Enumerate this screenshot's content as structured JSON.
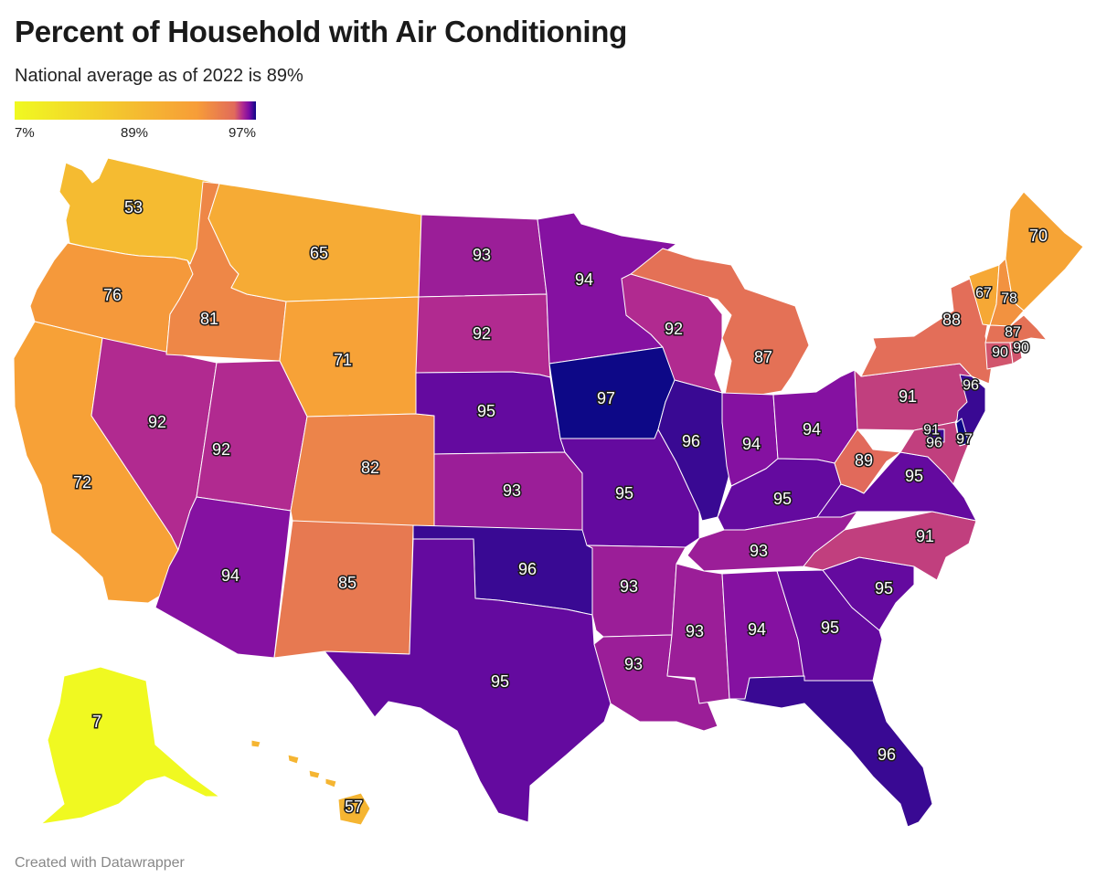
{
  "title": "Percent of Household with Air Conditioning",
  "subtitle": "National average as of 2022 is 89%",
  "legend": {
    "min_label": "7%",
    "mid_label": "89%",
    "max_label": "97%",
    "min": 7,
    "mid": 89,
    "max": 97,
    "colors": [
      "#f0f921",
      "#f79d38",
      "#e16a5b",
      "#b12a90",
      "#7a0ba5",
      "#0d0887"
    ]
  },
  "credit": "Created with Datawrapper",
  "chart_data": {
    "type": "choropleth",
    "unit": "%",
    "states": [
      {
        "code": "WA",
        "value": 53,
        "label": "53"
      },
      {
        "code": "OR",
        "value": 76,
        "label": "76"
      },
      {
        "code": "CA",
        "value": 72,
        "label": "72"
      },
      {
        "code": "NV",
        "value": 92,
        "label": "92"
      },
      {
        "code": "ID",
        "value": 81,
        "label": "81"
      },
      {
        "code": "MT",
        "value": 65,
        "label": "65"
      },
      {
        "code": "WY",
        "value": 71,
        "label": "71"
      },
      {
        "code": "UT",
        "value": 92,
        "label": "92"
      },
      {
        "code": "AZ",
        "value": 94,
        "label": "94"
      },
      {
        "code": "CO",
        "value": 82,
        "label": "82"
      },
      {
        "code": "NM",
        "value": 85,
        "label": "85"
      },
      {
        "code": "ND",
        "value": 93,
        "label": "93"
      },
      {
        "code": "SD",
        "value": 92,
        "label": "92"
      },
      {
        "code": "NE",
        "value": 95,
        "label": "95"
      },
      {
        "code": "KS",
        "value": 93,
        "label": "93"
      },
      {
        "code": "OK",
        "value": 96,
        "label": "96"
      },
      {
        "code": "TX",
        "value": 95,
        "label": "95"
      },
      {
        "code": "MN",
        "value": 94,
        "label": "94"
      },
      {
        "code": "IA",
        "value": 97,
        "label": "97"
      },
      {
        "code": "MO",
        "value": 95,
        "label": "95"
      },
      {
        "code": "AR",
        "value": 93,
        "label": "93"
      },
      {
        "code": "LA",
        "value": 93,
        "label": "93"
      },
      {
        "code": "WI",
        "value": 92,
        "label": "92"
      },
      {
        "code": "IL",
        "value": 96,
        "label": "96"
      },
      {
        "code": "MI",
        "value": 87,
        "label": "87"
      },
      {
        "code": "IN",
        "value": 94,
        "label": "94"
      },
      {
        "code": "OH",
        "value": 94,
        "label": "94"
      },
      {
        "code": "KY",
        "value": 95,
        "label": "95"
      },
      {
        "code": "TN",
        "value": 93,
        "label": "93"
      },
      {
        "code": "MS",
        "value": 93,
        "label": "93"
      },
      {
        "code": "AL",
        "value": 94,
        "label": "94"
      },
      {
        "code": "GA",
        "value": 95,
        "label": "95"
      },
      {
        "code": "FL",
        "value": 96,
        "label": "96"
      },
      {
        "code": "SC",
        "value": 95,
        "label": "95"
      },
      {
        "code": "NC",
        "value": 91,
        "label": "91"
      },
      {
        "code": "VA",
        "value": 95,
        "label": "95"
      },
      {
        "code": "WV",
        "value": 89,
        "label": "89"
      },
      {
        "code": "PA",
        "value": 91,
        "label": "91"
      },
      {
        "code": "NY",
        "value": 88,
        "label": "88"
      },
      {
        "code": "VT",
        "value": 67,
        "label": "67"
      },
      {
        "code": "NH",
        "value": 78,
        "label": "78"
      },
      {
        "code": "ME",
        "value": 70,
        "label": "70"
      },
      {
        "code": "MA",
        "value": 87,
        "label": "87"
      },
      {
        "code": "CT",
        "value": 90,
        "label": "90"
      },
      {
        "code": "RI",
        "value": 90,
        "label": "90"
      },
      {
        "code": "NJ",
        "value": 96,
        "label": "96"
      },
      {
        "code": "DE",
        "value": 97,
        "label": "97"
      },
      {
        "code": "MD",
        "value": 91,
        "label": "91"
      },
      {
        "code": "DC",
        "value": 96,
        "label": "96"
      },
      {
        "code": "AK",
        "value": 7,
        "label": "7"
      },
      {
        "code": "HI",
        "value": 57,
        "label": "57"
      }
    ]
  }
}
